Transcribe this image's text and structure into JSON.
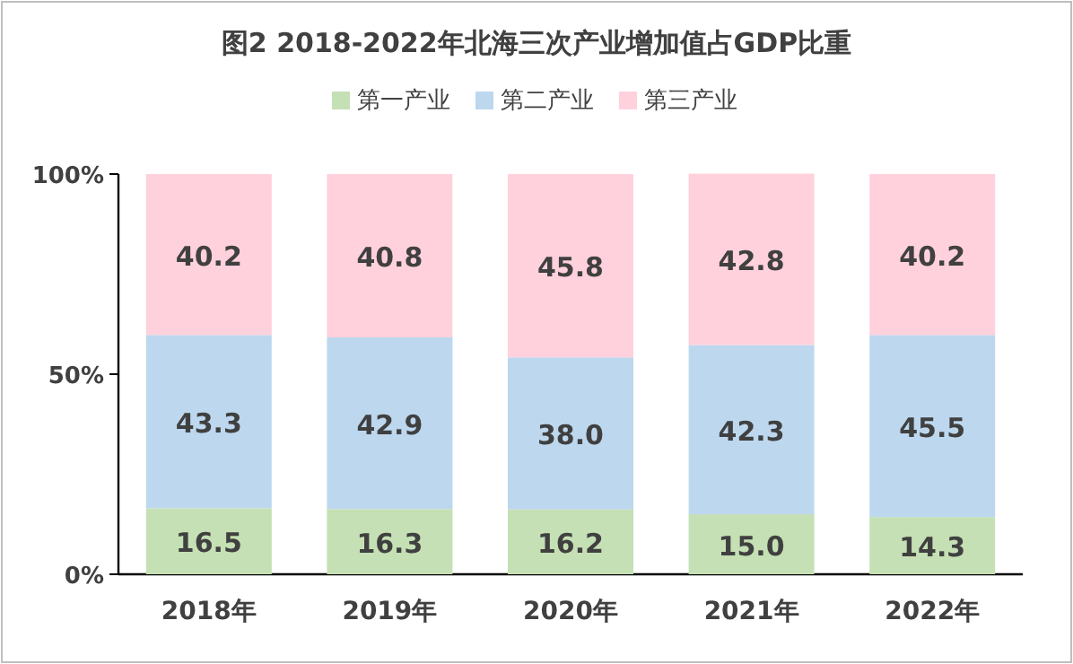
{
  "chart_data": {
    "type": "bar",
    "title": "图2  2018-2022年北海三次产业增加值占GDP比重",
    "categories": [
      "2018年",
      "2019年",
      "2020年",
      "2021年",
      "2022年"
    ],
    "stacked": true,
    "legend": "top",
    "ylim": [
      0,
      100
    ],
    "yticks": [
      {
        "value": 0,
        "label": "0%"
      },
      {
        "value": 50,
        "label": "50%"
      },
      {
        "value": 100,
        "label": "100%"
      }
    ],
    "series": [
      {
        "name": "第一产业",
        "color": "#c5e0b4",
        "values": [
          16.5,
          16.3,
          16.2,
          15.0,
          14.3
        ],
        "value_labels": [
          "16.5",
          "16.3",
          "16.2",
          "15.0",
          "14.3"
        ]
      },
      {
        "name": "第二产业",
        "color": "#bdd7ee",
        "values": [
          43.3,
          42.9,
          38.0,
          42.3,
          45.5
        ],
        "value_labels": [
          "43.3",
          "42.9",
          "38.0",
          "42.3",
          "45.5"
        ]
      },
      {
        "name": "第三产业",
        "color": "#ffd1dc",
        "values": [
          40.2,
          40.8,
          45.8,
          42.8,
          40.2
        ],
        "value_labels": [
          "40.2",
          "40.8",
          "45.8",
          "42.8",
          "40.2"
        ]
      }
    ]
  }
}
